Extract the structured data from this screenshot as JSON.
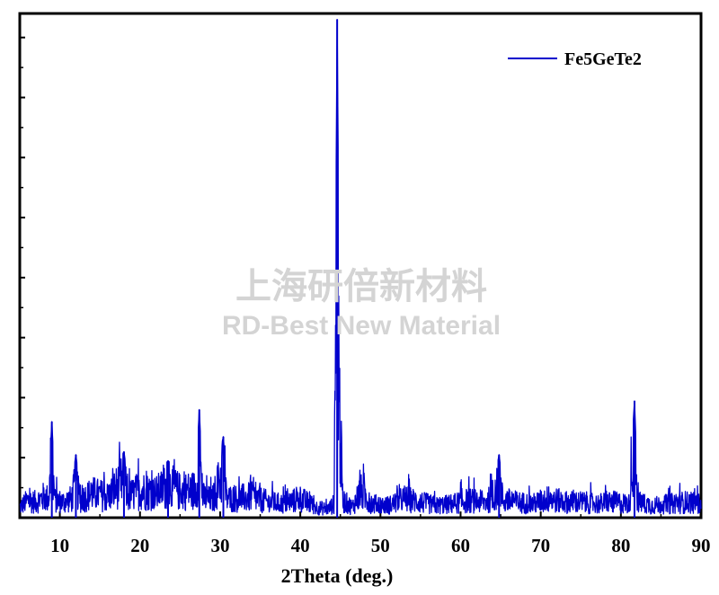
{
  "chart_data": {
    "type": "line",
    "title": "",
    "xlabel": "2Theta (deg.)",
    "ylabel": "",
    "xlim": [
      5,
      90
    ],
    "ylim": [
      0,
      8.4
    ],
    "x_ticks": [
      10,
      20,
      30,
      40,
      50,
      60,
      70,
      80,
      90
    ],
    "x_tick_labels": [
      "10",
      "20",
      "30",
      "40",
      "50",
      "60",
      "70",
      "80",
      "90"
    ],
    "y_tick_labels_shown": false,
    "grid": false,
    "legend_position": "top-right",
    "series": [
      {
        "name": "Fe5GeTe2",
        "color": "#0000cc",
        "points": [
          [
            5.0,
            0.3
          ],
          [
            6.0,
            0.5
          ],
          [
            7.0,
            0.45
          ],
          [
            8.0,
            0.6
          ],
          [
            8.6,
            0.55
          ],
          [
            9.0,
            1.6
          ],
          [
            9.4,
            0.5
          ],
          [
            10.5,
            0.45
          ],
          [
            11.5,
            0.55
          ],
          [
            12.0,
            1.05
          ],
          [
            12.5,
            0.5
          ],
          [
            14.0,
            0.7
          ],
          [
            16.0,
            0.6
          ],
          [
            18.0,
            1.1
          ],
          [
            18.5,
            0.6
          ],
          [
            20.0,
            0.8
          ],
          [
            22.0,
            0.7
          ],
          [
            23.5,
            0.95
          ],
          [
            25.0,
            0.75
          ],
          [
            27.0,
            0.8
          ],
          [
            27.4,
            1.8
          ],
          [
            27.8,
            0.6
          ],
          [
            29.0,
            0.5
          ],
          [
            30.4,
            1.35
          ],
          [
            30.8,
            0.55
          ],
          [
            32.0,
            0.55
          ],
          [
            34.0,
            0.6
          ],
          [
            36.0,
            0.45
          ],
          [
            38.0,
            0.4
          ],
          [
            40.0,
            0.55
          ],
          [
            42.0,
            0.3
          ],
          [
            43.5,
            0.25
          ],
          [
            44.2,
            0.4
          ],
          [
            44.6,
            8.3
          ],
          [
            44.9,
            3.0
          ],
          [
            45.3,
            0.5
          ],
          [
            46.5,
            0.3
          ],
          [
            47.5,
            0.75
          ],
          [
            49.0,
            0.4
          ],
          [
            51.0,
            0.35
          ],
          [
            53.0,
            0.55
          ],
          [
            55.0,
            0.45
          ],
          [
            57.0,
            0.35
          ],
          [
            59.0,
            0.4
          ],
          [
            61.0,
            0.5
          ],
          [
            63.0,
            0.45
          ],
          [
            64.2,
            0.6
          ],
          [
            64.8,
            1.05
          ],
          [
            65.3,
            0.5
          ],
          [
            67.0,
            0.45
          ],
          [
            69.0,
            0.4
          ],
          [
            71.0,
            0.55
          ],
          [
            73.0,
            0.45
          ],
          [
            75.0,
            0.45
          ],
          [
            77.0,
            0.4
          ],
          [
            79.0,
            0.45
          ],
          [
            81.0,
            0.4
          ],
          [
            81.7,
            1.95
          ],
          [
            82.1,
            0.45
          ],
          [
            84.0,
            0.35
          ],
          [
            86.0,
            0.4
          ],
          [
            88.0,
            0.45
          ],
          [
            90.0,
            0.4
          ]
        ]
      }
    ]
  },
  "watermark": {
    "line1": "上海研倍新材料",
    "line2": "RD-Best New Material"
  }
}
